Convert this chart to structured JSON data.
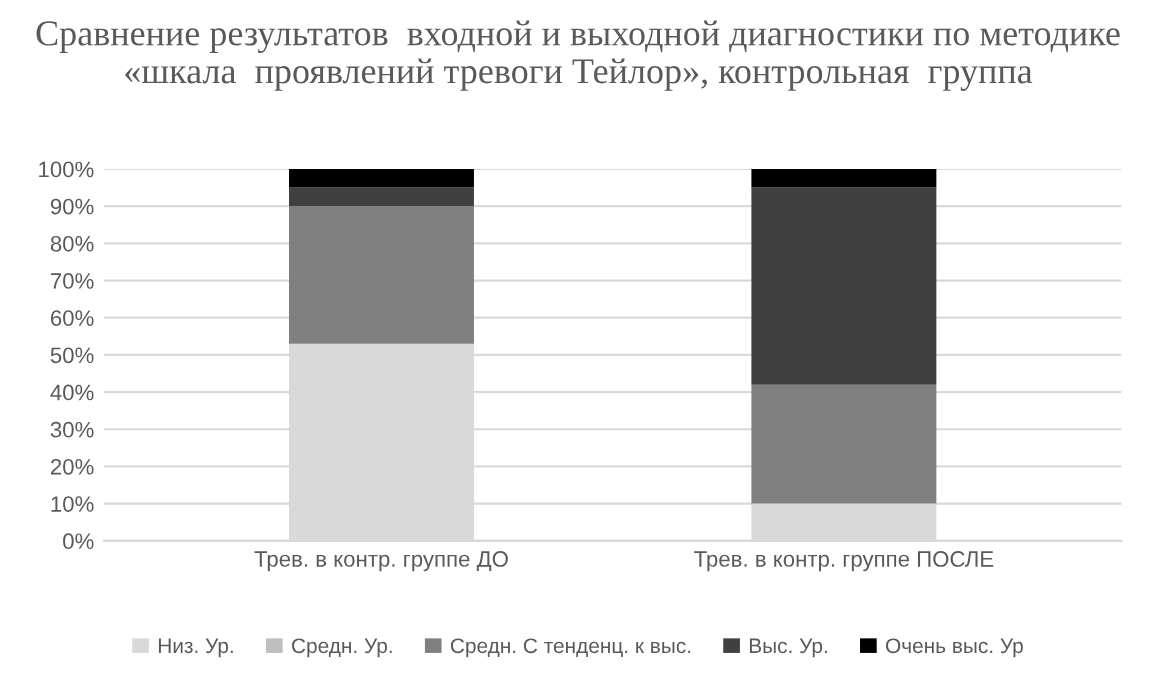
{
  "chart_data": {
    "type": "bar",
    "stacked": true,
    "title": "Сравнение результатов  входной и выходной диагностики по методике «шкала  проявлений тревоги Тейлор», контрольная  группа",
    "categories": [
      "Трев. в контр. группе ДО",
      "Трев. в контр. группе ПОСЛЕ"
    ],
    "series": [
      {
        "name": "Низ. Ур.",
        "color": "#d9d9d9",
        "values": [
          53,
          10
        ]
      },
      {
        "name": "Средн. Ур.",
        "color": "#bfbfbf",
        "values": [
          0,
          0
        ]
      },
      {
        "name": "Средн. С тенденц. к выс.",
        "color": "#808080",
        "values": [
          37,
          32
        ]
      },
      {
        "name": "Выс. Ур.",
        "color": "#404040",
        "values": [
          5,
          53
        ]
      },
      {
        "name": "Очень выс. Ур",
        "color": "#000000",
        "values": [
          5,
          5
        ]
      }
    ],
    "ylim": [
      0,
      100
    ],
    "yticks": [
      {
        "value": 0,
        "label": "0%"
      },
      {
        "value": 10,
        "label": "10%"
      },
      {
        "value": 20,
        "label": "20%"
      },
      {
        "value": 30,
        "label": "30%"
      },
      {
        "value": 40,
        "label": "40%"
      },
      {
        "value": 50,
        "label": "50%"
      },
      {
        "value": 60,
        "label": "60%"
      },
      {
        "value": 70,
        "label": "70%"
      },
      {
        "value": 80,
        "label": "80%"
      },
      {
        "value": 90,
        "label": "90%"
      },
      {
        "value": 100,
        "label": "100%"
      }
    ],
    "grid": "y",
    "legend": "bottom"
  }
}
